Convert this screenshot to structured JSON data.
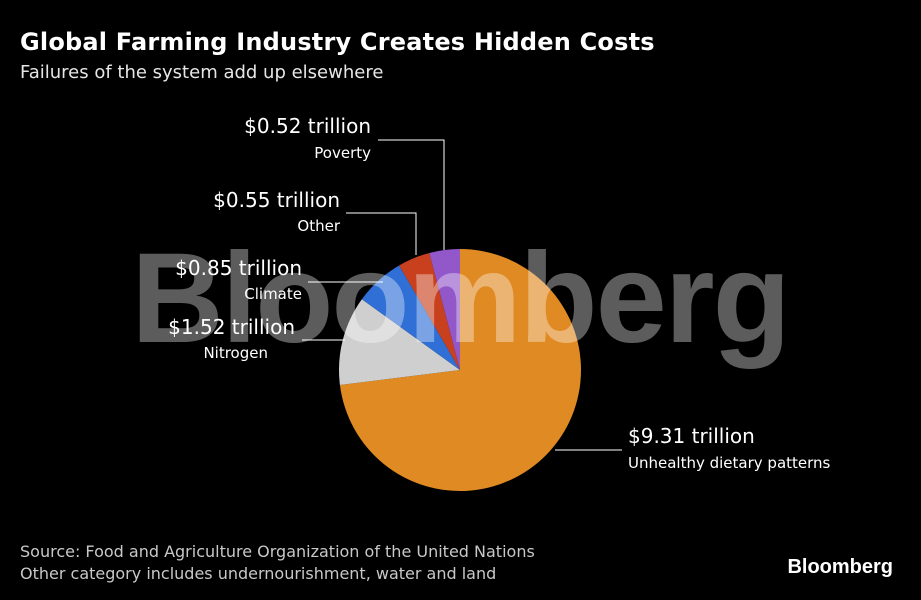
{
  "title": "Global Farming Industry Creates Hidden Costs",
  "subtitle": "Failures of the system add up elsewhere",
  "watermark": "Bloomberg",
  "brand": "Bloomberg",
  "source_line": "Source: Food and Agriculture Organization of the United Nations",
  "note_line": "Other category includes undernourishment, water and land",
  "chart_data": {
    "type": "pie",
    "units": "trillion USD",
    "slices": [
      {
        "name": "Unhealthy dietary patterns",
        "value": 9.31,
        "label": "$9.31 trillion",
        "color": "#E08A23"
      },
      {
        "name": "Nitrogen",
        "value": 1.52,
        "label": "$1.52 trillion",
        "color": "#CFCFCF"
      },
      {
        "name": "Climate",
        "value": 0.85,
        "label": "$0.85 trillion",
        "color": "#2F6FD6"
      },
      {
        "name": "Other",
        "value": 0.55,
        "label": "$0.55 trillion",
        "color": "#C8401E"
      },
      {
        "name": "Poverty",
        "value": 0.52,
        "label": "$0.52 trillion",
        "color": "#9257C9"
      }
    ]
  }
}
